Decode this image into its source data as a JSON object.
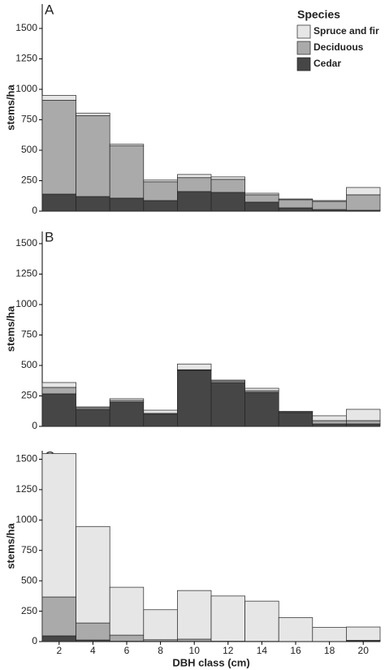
{
  "chart_data": [
    {
      "type": "bar",
      "stacked": true,
      "title": "A",
      "y_label": "stems/ha",
      "legend_title": "Species",
      "legend": "top-right",
      "series": [
        {
          "name": "Spruce and fir",
          "color": "#e6e6e6",
          "values": [
            40,
            20,
            13,
            14,
            26,
            20,
            13,
            6,
            7,
            60
          ]
        },
        {
          "name": "Deciduous",
          "color": "#aaaaaa",
          "values": [
            770,
            665,
            429,
            154,
            114,
            107,
            60,
            67,
            67,
            127
          ]
        },
        {
          "name": "Cedar",
          "color": "#464646",
          "values": [
            140,
            120,
            107,
            87,
            161,
            154,
            74,
            27,
            13,
            7
          ]
        }
      ],
      "ylim": [
        0,
        1700
      ],
      "yticks": [
        0,
        250,
        500,
        750,
        1000,
        1250,
        1500
      ]
    },
    {
      "type": "bar",
      "stacked": true,
      "title": "B",
      "y_label": "stems/ha",
      "series": [
        {
          "color": "#e6e6e6",
          "values": [
            40,
            7,
            14,
            26,
            47,
            7,
            20,
            3,
            40,
            93
          ]
        },
        {
          "color": "#aaaaaa",
          "values": [
            53,
            13,
            13,
            7,
            5,
            13,
            13,
            7,
            27,
            27
          ]
        },
        {
          "color": "#464646",
          "values": [
            267,
            140,
            200,
            100,
            460,
            360,
            280,
            113,
            20,
            20
          ]
        }
      ],
      "ylim": [
        0,
        1600
      ],
      "yticks": [
        0,
        250,
        500,
        750,
        1000,
        1250,
        1500
      ]
    },
    {
      "type": "bar",
      "stacked": true,
      "title": "C",
      "y_label": "stems/ha",
      "x_label": "DBH class (cm)",
      "categories": [
        "2",
        "4",
        "6",
        "8",
        "10",
        "12",
        "14",
        "16",
        "18",
        "20"
      ],
      "series": [
        {
          "color": "#e6e6e6",
          "values": [
            1180,
            794,
            394,
            247,
            400,
            372,
            331,
            196,
            115,
            110
          ]
        },
        {
          "color": "#aaaaaa",
          "values": [
            320,
            140,
            50,
            13,
            18,
            3,
            2,
            1,
            1,
            3
          ]
        },
        {
          "color": "#464646",
          "values": [
            47,
            13,
            3,
            2,
            2,
            0,
            0,
            0,
            0,
            7
          ]
        }
      ],
      "ylim": [
        0,
        1570
      ],
      "yticks": [
        0,
        250,
        500,
        750,
        1000,
        1250,
        1500
      ]
    }
  ]
}
